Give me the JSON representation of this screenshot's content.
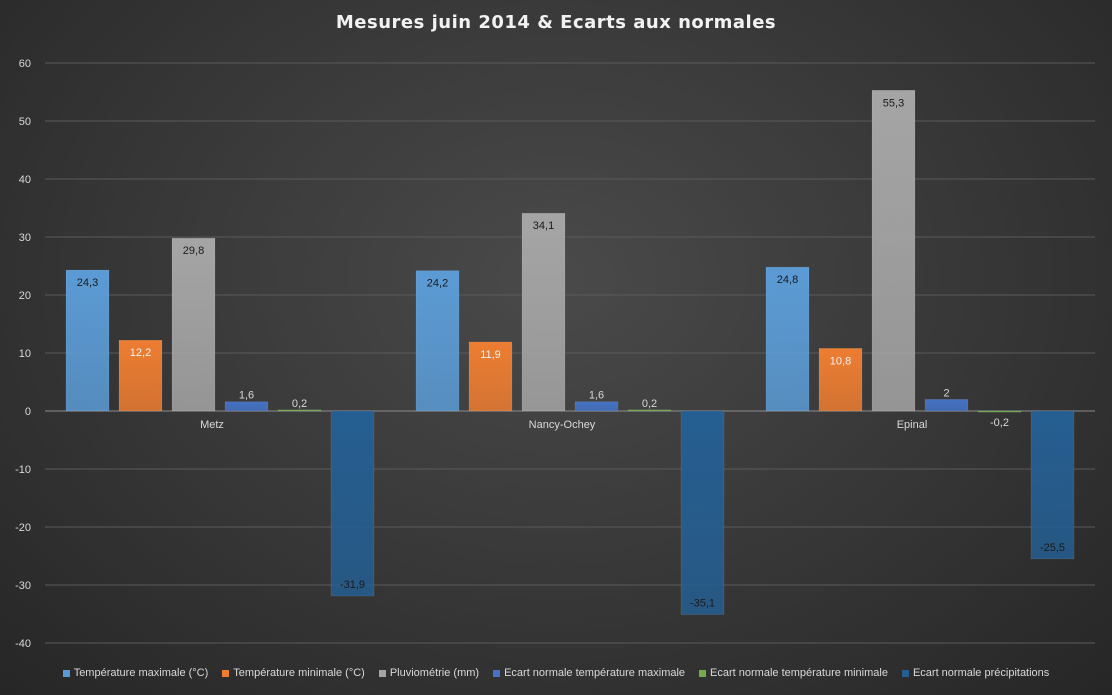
{
  "chart_data": {
    "type": "bar",
    "title": "Mesures juin 2014 & Ecarts aux normales",
    "categories": [
      "Metz",
      "Nancy-Ochey",
      "Epinal"
    ],
    "ylim": [
      -40,
      60
    ],
    "yticks": [
      60,
      50,
      40,
      30,
      20,
      10,
      0,
      -10,
      -20,
      -30,
      -40
    ],
    "grid": true,
    "legend_position": "bottom",
    "series": [
      {
        "name": "Température maximale (°C)",
        "values": [
          24.3,
          24.2,
          24.8
        ],
        "labels": [
          "24,3",
          "24,2",
          "24,8"
        ],
        "color": "#5b9bd5",
        "label_color": "#1a1a1a"
      },
      {
        "name": "Température minimale (°C)",
        "values": [
          12.2,
          11.9,
          10.8
        ],
        "labels": [
          "12,2",
          "11,9",
          "10,8"
        ],
        "color": "#ed7d31",
        "label_color": "#f2f2f2"
      },
      {
        "name": "Pluviométrie (mm)",
        "values": [
          29.8,
          34.1,
          55.3
        ],
        "labels": [
          "29,8",
          "34,1",
          "55,3"
        ],
        "color": "#a5a5a5",
        "label_color": "#1a1a1a"
      },
      {
        "name": "Ecart normale température maximale",
        "values": [
          1.6,
          1.6,
          2
        ],
        "labels": [
          "1,6",
          "1,6",
          "2"
        ],
        "color": "#4472c4",
        "label_color": "#1a1a1a"
      },
      {
        "name": "Ecart normale température minimale",
        "values": [
          0.2,
          0.2,
          -0.2
        ],
        "labels": [
          "0,2",
          "0,2",
          "-0,2"
        ],
        "color": "#70ad47",
        "label_color": "#1a1a1a"
      },
      {
        "name": "Ecart normale précipitations",
        "values": [
          -31.9,
          -35.1,
          -25.5
        ],
        "labels": [
          "-31,9",
          "-35,1",
          "-25,5"
        ],
        "color": "#255e91",
        "label_color": "#1a1a1a"
      }
    ]
  }
}
